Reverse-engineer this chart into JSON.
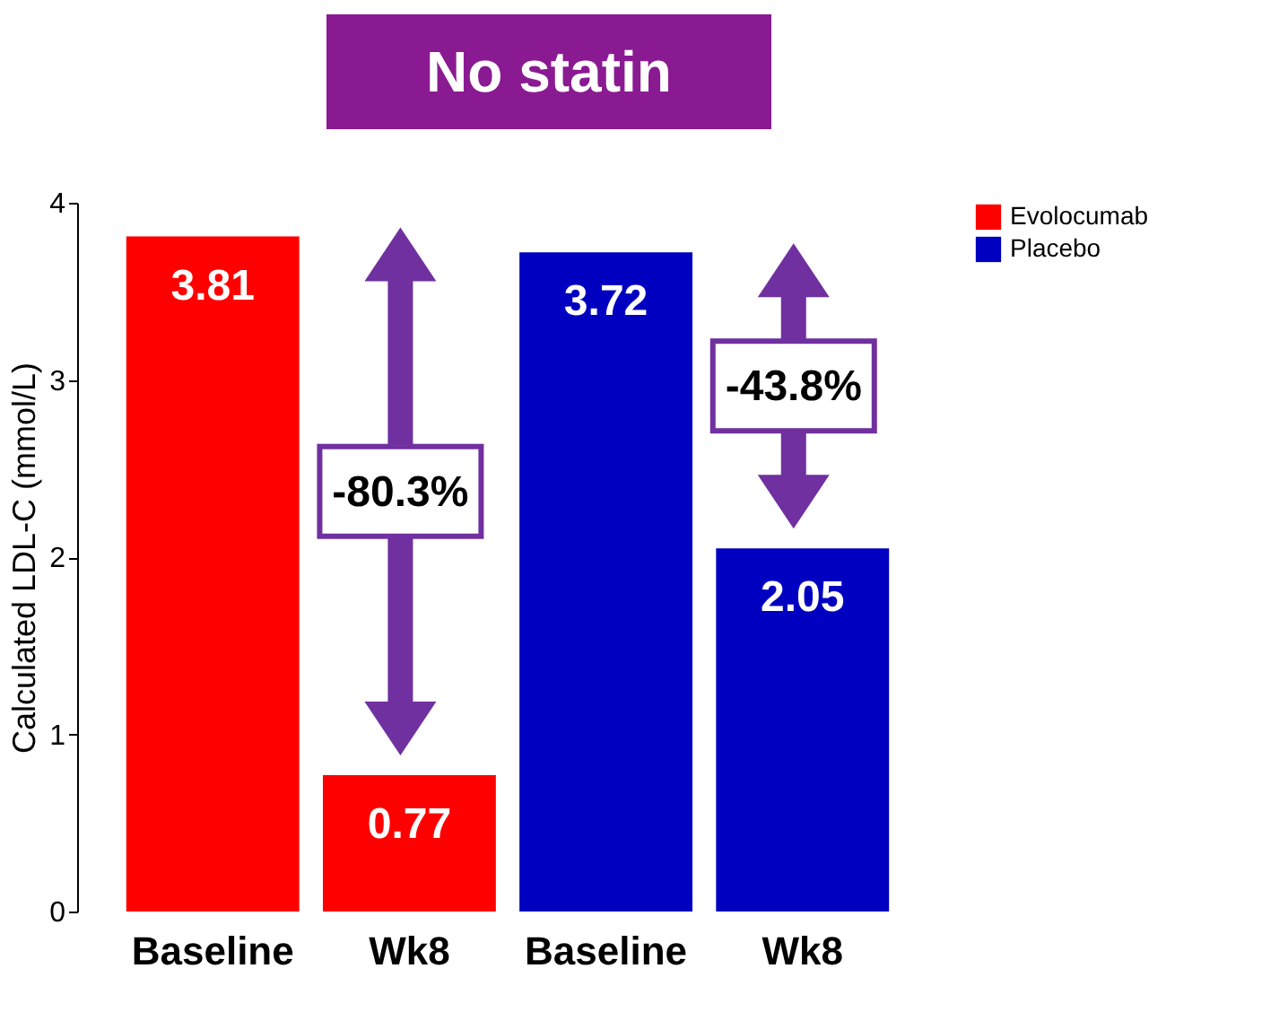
{
  "chart_data": {
    "type": "bar",
    "title": "No statin",
    "ylabel": "Calculated LDL-C (mmol/L)",
    "categories": [
      "Baseline",
      "Wk8",
      "Baseline",
      "Wk8"
    ],
    "series": [
      {
        "name": "Evolocumab",
        "color": "#ff0000",
        "values": [
          3.81,
          0.77,
          null,
          null
        ]
      },
      {
        "name": "Placebo",
        "color": "#0000c0",
        "values": [
          null,
          null,
          3.72,
          2.05
        ]
      }
    ],
    "ylim": [
      0,
      4
    ],
    "yticks": [
      0,
      1,
      2,
      3,
      4
    ],
    "data_labels": true,
    "grid": false,
    "legend": "top right",
    "annotations": [
      "-80.3%",
      "-43.8%"
    ]
  }
}
